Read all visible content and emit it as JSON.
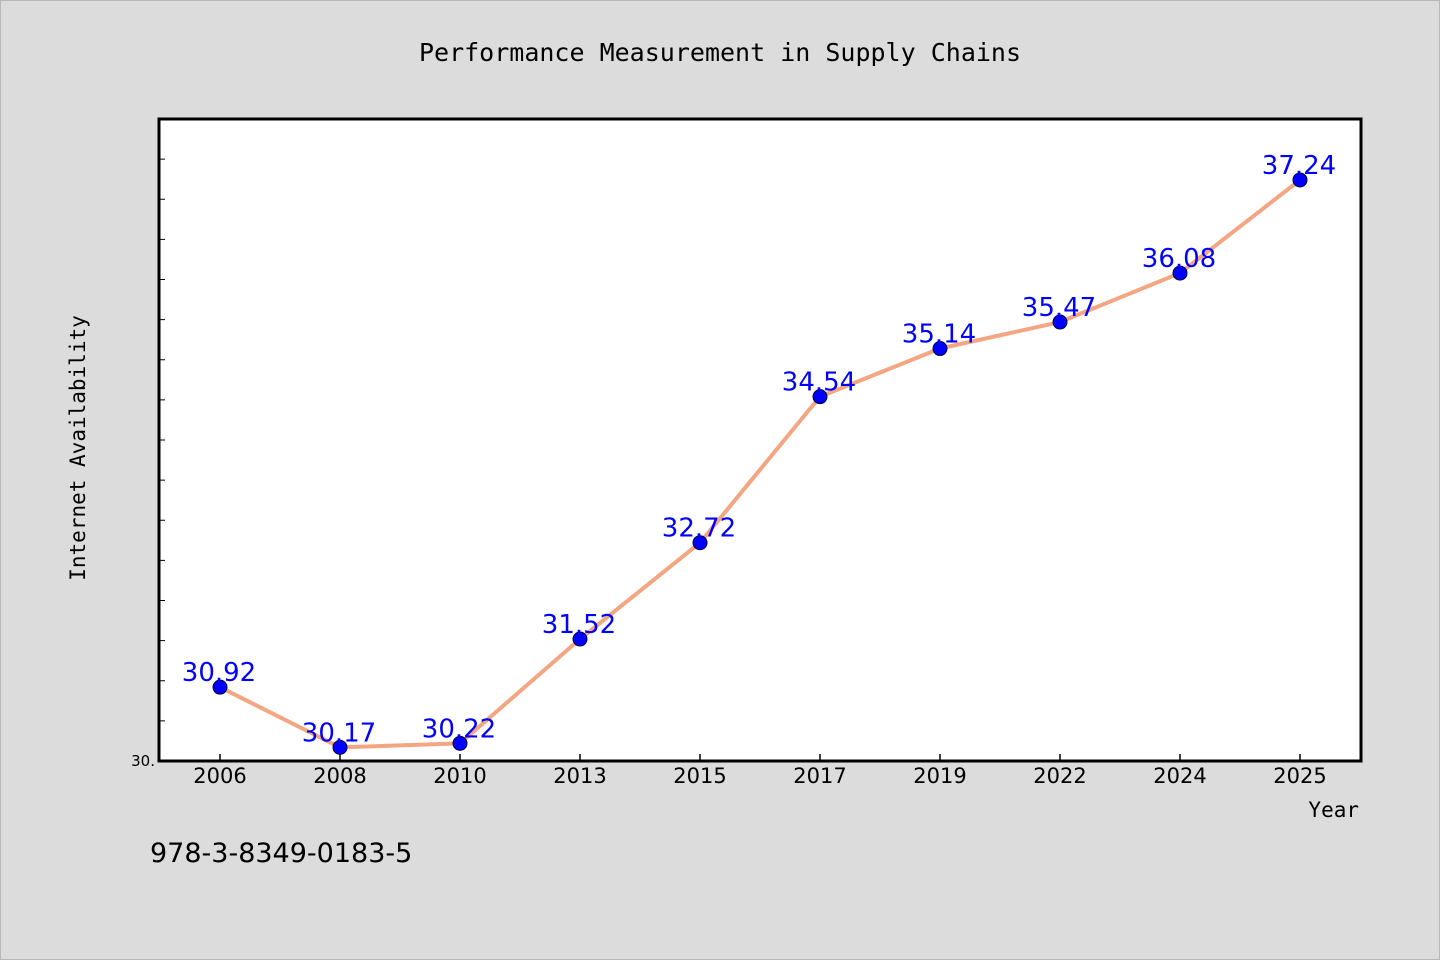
{
  "chart_data": {
    "type": "line",
    "title": "Performance Measurement in Supply Chains",
    "xlabel": "Year",
    "ylabel": "Internet Availability",
    "categories": [
      "2006",
      "2008",
      "2010",
      "2013",
      "2015",
      "2017",
      "2019",
      "2022",
      "2024",
      "2025"
    ],
    "series": [
      {
        "values": [
          30.92,
          30.17,
          30.22,
          31.52,
          32.72,
          34.54,
          35.14,
          35.47,
          36.08,
          37.24
        ],
        "labels": [
          "30.92",
          "30.17",
          "30.22",
          "31.52",
          "32.72",
          "34.54",
          "35.14",
          "35.47",
          "36.08",
          "37.24"
        ]
      }
    ],
    "y_tick_label": "30.",
    "ylim": [
      30.0,
      38.0
    ],
    "minor_tick_step": 0.5,
    "grid": false,
    "line_color": "#f4a582",
    "marker_color": "#0000ff",
    "label_color": "#0000ff",
    "plot_background": "#ffffff",
    "page_background": "#dcdcdc"
  },
  "footer": {
    "code": "978-3-8349-0183-5"
  }
}
